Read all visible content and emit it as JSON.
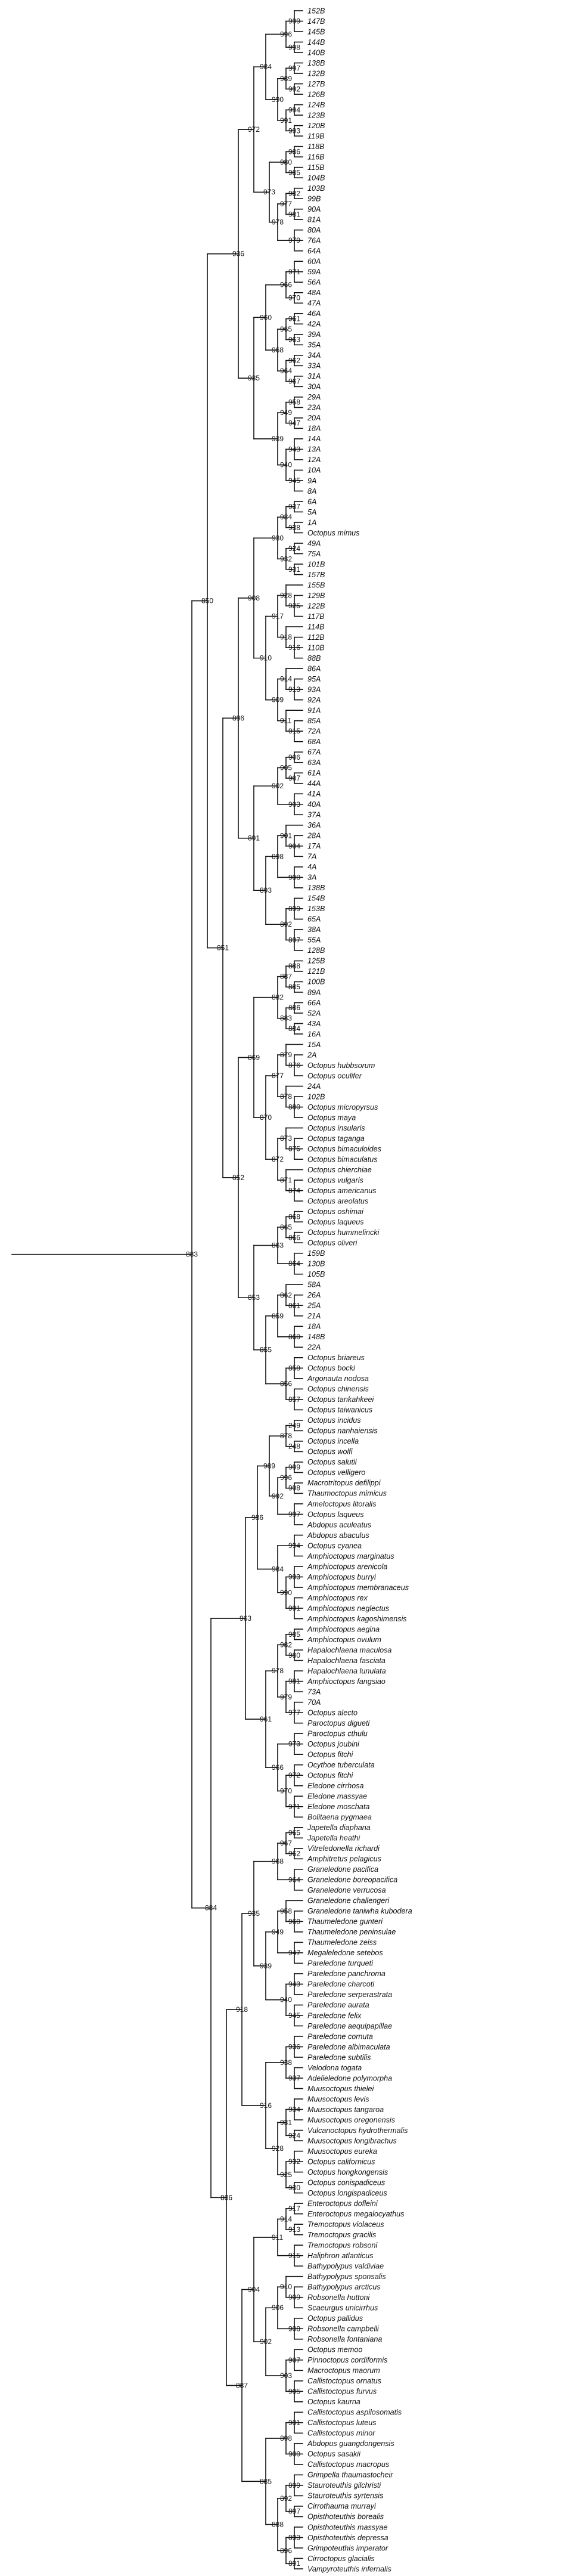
{
  "diagram": {
    "type": "phylogenetic-cladogram",
    "leaves": [
      "152B",
      "147B",
      "145B",
      "144B",
      "140B",
      "138B",
      "132B",
      "127B",
      "126B",
      "124B",
      "123B",
      "120B",
      "119B",
      "118B",
      "116B",
      "115B",
      "104B",
      "103B",
      "99B",
      "90A",
      "81A",
      "80A",
      "76A",
      "64A",
      "60A",
      "59A",
      "56A",
      "48A",
      "47A",
      "46A",
      "42A",
      "39A",
      "35A",
      "34A",
      "33A",
      "31A",
      "30A",
      "29A",
      "23A",
      "20A",
      "18A",
      "14A",
      "13A",
      "12A",
      "10A",
      "9A",
      "8A",
      "6A",
      "5A",
      "1A",
      "Octopus mimus",
      "49A",
      "75A",
      "101B",
      "157B",
      "155B",
      "129B",
      "122B",
      "117B",
      "114B",
      "112B",
      "110B",
      "88B",
      "86A",
      "95A",
      "93A",
      "92A",
      "91A",
      "85A",
      "72A",
      "68A",
      "67A",
      "63A",
      "61A",
      "44A",
      "41A",
      "40A",
      "37A",
      "36A",
      "28A",
      "17A",
      "7A",
      "4A",
      "3A",
      "138B",
      "154B",
      "153B",
      "65A",
      "38A",
      "55A",
      "128B",
      "125B",
      "121B",
      "100B",
      "89A",
      "66A",
      "52A",
      "43A",
      "16A",
      "15A",
      "2A",
      "Octopus hubbsorum",
      "Octopus oculifer",
      "24A",
      "102B",
      "Octopus micropyrsus",
      "Octopus maya",
      "Octopus insularis",
      "Octopus tagangа",
      "Octopus bimaculoides",
      "Octopus bimaculatus",
      "Octopus chierchiae",
      "Octopus vulgaris",
      "Octopus americanus",
      "Octopus areolatus",
      "Octopus oshimai",
      "Octopus laqueus",
      "Octopus hummelincki",
      "Octopus oliveri",
      "159B",
      "130B",
      "105B",
      "58A",
      "26A",
      "25A",
      "21A",
      "18A",
      "148B",
      "22A",
      "Octopus briareus",
      "Octopus bocki",
      "Argonauta nodosa",
      "Octopus chinensis",
      "Octopus tankahkeei",
      "Octopus taiwanicus",
      "Octopus incidus",
      "Octopus nanhaiensis",
      "Octopus incella",
      "Octopus wolfi",
      "Octopus salutii",
      "Octopus velligero",
      "Macrotritopus defilippi",
      "Thaumoctopus mimicus",
      "Ameloctopus litoralis",
      "Octopus laqueus",
      "Abdopus aculeatus",
      "Abdopus abaculus",
      "Octopus cyanea",
      "Amphioctopus marginatus",
      "Amphioctopus arenicola",
      "Amphioctopus burryi",
      "Amphioctopus membranaceus",
      "Amphioctopus rex",
      "Amphioctopus neglectus",
      "Amphioctopus kagoshimensis",
      "Amphioctopus aegina",
      "Amphioctopus ovulum",
      "Hapalochlaena maculosa",
      "Hapalochlaena fasciata",
      "Hapalochlaena lunulata",
      "Amphioctopus fangsiao",
      "73A",
      "70A",
      "Octopus alecto",
      "Paroctopus digueti",
      "Paroctopus cthulu",
      "Octopus joubini",
      "Octopus fitchi",
      "Ocythoe tuberculata",
      "Octopus fitchi",
      "Eledone cirrhosa",
      "Eledone massyae",
      "Eledone moschata",
      "Bolitaena pygmaea",
      "Japetella diaphana",
      "Japetella heathi",
      "Vitreledonella richardi",
      "Amphitretus pelagicus",
      "Graneledone pacifica",
      "Graneledone boreopacifica",
      "Graneledone verrucosa",
      "Graneledone challengeri",
      "Graneledone taniwha kuboderа",
      "Thaumeledone gunteri",
      "Thaumeledone peninsulae",
      "Thaumeledone zeiss",
      "Megaleledone setebos",
      "Pareledone turqueti",
      "Pareledone panchroma",
      "Pareledone charcoti",
      "Pareledone serperastrata",
      "Pareledone aurata",
      "Pareledone felix",
      "Pareledone aequipapillae",
      "Pareledone cornuta",
      "Pareledone albimaculata",
      "Pareledone subtilis",
      "Velodona togata",
      "Adelieledone polymorpha",
      "Muusoctopus thielei",
      "Muusoctopus levis",
      "Muusoctopus tangaroa",
      "Muusoctopus oregonensis",
      "Vulcanoctopus hydrothermalis",
      "Muusoctopus longibrachus",
      "Muusoctopus eureka",
      "Octopus californicus",
      "Octopus hongkongensis",
      "Octopus conispadiceus",
      "Octopus longispadiceus",
      "Enteroctopus dofleini",
      "Enteroctopus megalocyathus",
      "Tremoctopus violaceus",
      "Tremoctopus gracilis",
      "Tremoctopus robsoni",
      "Haliphron atlanticus",
      "Bathypolypus valdiviae",
      "Bathypolypus sponsalis",
      "Bathypolypus arcticus",
      "Robsonella huttoni",
      "Scaeurgus unicirrhus",
      "Octopus pallidus",
      "Robsonella campbelli",
      "Robsonella fontaniana",
      "Octopus memoo",
      "Pinnoctopus cordiformis",
      "Macroctopus maorum",
      "Callistoctopus ornatus",
      "Callistoctopus furvus",
      "Octopus kaurna",
      "Callistoctopus aspilosomatis",
      "Callistoctopus luteus",
      "Callistoctopus minor",
      "Abdopus guangdongensis",
      "Octopus sasakii",
      "Callistoctopus macropus",
      "Grimpella thaumastocheir",
      "Stauroteuthis gilchristi",
      "Stauroteuthis syrtensis",
      "Cirrothauma murrayi",
      "Opisthoteuthis borealis",
      "Opisthoteuthis massyae",
      "Opisthoteuthis depressa",
      "Grimpoteuthis imperator",
      "Cirroctopus glacialis",
      "Vampyroteuthis infernalis"
    ],
    "internal_nodes": [
      "999",
      "998",
      "996",
      "997",
      "992",
      "989",
      "994",
      "993",
      "991",
      "990",
      "984",
      "986",
      "985",
      "980",
      "982",
      "981",
      "977",
      "979",
      "978",
      "973",
      "972",
      "971",
      "970",
      "966",
      "961",
      "963",
      "965",
      "962",
      "967",
      "964",
      "968",
      "960",
      "958",
      "947",
      "949",
      "943",
      "945",
      "940",
      "939",
      "935",
      "936",
      "937",
      "938",
      "934",
      "924",
      "931",
      "932",
      "930",
      "925",
      "928",
      "916",
      "918",
      "917",
      "913",
      "914",
      "915",
      "911",
      "909",
      "910",
      "908",
      "906",
      "907",
      "905",
      "903",
      "902",
      "904",
      "901",
      "900",
      "898",
      "899",
      "897",
      "892",
      "893",
      "891",
      "896",
      "888",
      "885",
      "887",
      "886",
      "884",
      "883",
      "882",
      "876",
      "879",
      "880",
      "878",
      "877",
      "875",
      "873",
      "874",
      "871",
      "872",
      "870",
      "869",
      "868",
      "866",
      "865",
      "864",
      "863",
      "861",
      "862",
      "860",
      "859",
      "858",
      "857",
      "856",
      "855",
      "853",
      "852",
      "851",
      "850",
      "249",
      "248",
      "878"
    ]
  }
}
